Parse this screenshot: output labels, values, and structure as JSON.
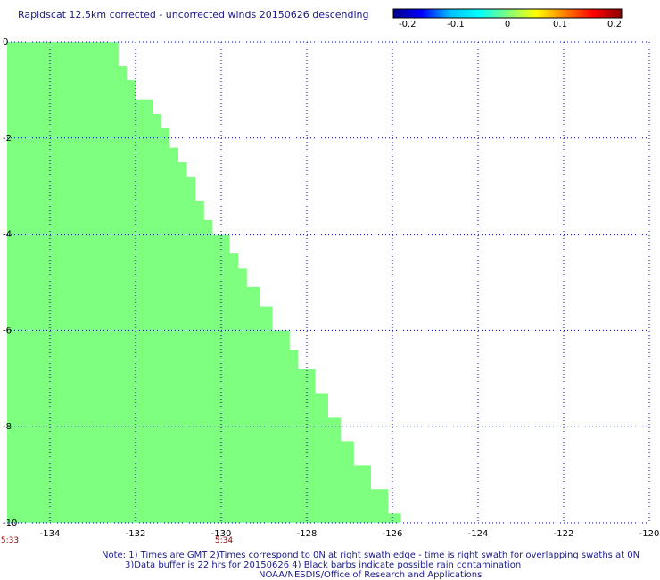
{
  "title": "Rapidscat 12.5km corrected - uncorrected winds 20150626 descending",
  "colorbar": {
    "ticks": [
      "-0.2",
      "-0.1",
      "0",
      "0.1",
      "0.2"
    ],
    "colors": [
      "#00008b",
      "#0000ff",
      "#00bfff",
      "#00ffff",
      "#7fff7f",
      "#ffff00",
      "#ff8000",
      "#ff0000",
      "#8b0000"
    ]
  },
  "map": {
    "lon_range": [
      -135,
      -120
    ],
    "lat_range": [
      -10,
      0
    ],
    "x_ticks": [
      "-134",
      "-132",
      "-130",
      "-128",
      "-126",
      "-124",
      "-122",
      "-120"
    ],
    "x_tick_values": [
      -134,
      -132,
      -130,
      -128,
      -126,
      -124,
      -122,
      -120
    ],
    "y_ticks": [
      "0",
      "-2",
      "-4",
      "-6",
      "-8",
      "-10"
    ],
    "y_tick_values": [
      0,
      -2,
      -4,
      -6,
      -8,
      -10
    ],
    "fill_color": "#7fff7f",
    "swath_value": 0,
    "swath_edge": [
      {
        "lat": 0.0,
        "lon": -132.4
      },
      {
        "lat": -0.5,
        "lon": -132.2
      },
      {
        "lat": -0.8,
        "lon": -132.0
      },
      {
        "lat": -1.2,
        "lon": -131.6
      },
      {
        "lat": -1.5,
        "lon": -131.4
      },
      {
        "lat": -1.8,
        "lon": -131.2
      },
      {
        "lat": -2.2,
        "lon": -131.0
      },
      {
        "lat": -2.5,
        "lon": -130.8
      },
      {
        "lat": -2.8,
        "lon": -130.6
      },
      {
        "lat": -3.3,
        "lon": -130.4
      },
      {
        "lat": -3.7,
        "lon": -130.2
      },
      {
        "lat": -4.0,
        "lon": -129.8
      },
      {
        "lat": -4.4,
        "lon": -129.6
      },
      {
        "lat": -4.7,
        "lon": -129.4
      },
      {
        "lat": -5.1,
        "lon": -129.1
      },
      {
        "lat": -5.5,
        "lon": -128.8
      },
      {
        "lat": -6.0,
        "lon": -128.4
      },
      {
        "lat": -6.4,
        "lon": -128.2
      },
      {
        "lat": -6.8,
        "lon": -127.8
      },
      {
        "lat": -7.3,
        "lon": -127.5
      },
      {
        "lat": -7.8,
        "lon": -127.2
      },
      {
        "lat": -8.3,
        "lon": -126.9
      },
      {
        "lat": -8.8,
        "lon": -126.5
      },
      {
        "lat": -9.3,
        "lon": -126.1
      },
      {
        "lat": -9.8,
        "lon": -125.8
      },
      {
        "lat": -10.0,
        "lon": -125.6
      }
    ]
  },
  "times": [
    {
      "label": "5:33",
      "lon": -135
    },
    {
      "label": "5:34",
      "lon": -130
    }
  ],
  "notes": [
    "Note: 1) Times are GMT 2)Times correspond to 0N at right swath edge - time is right swath for overlapping swaths at 0N",
    "3)Data buffer is 22 hrs for 20150626 4) Black barbs indicate possible rain contamination",
    "NOAA/NESDIS/Office of Research and Applications"
  ]
}
